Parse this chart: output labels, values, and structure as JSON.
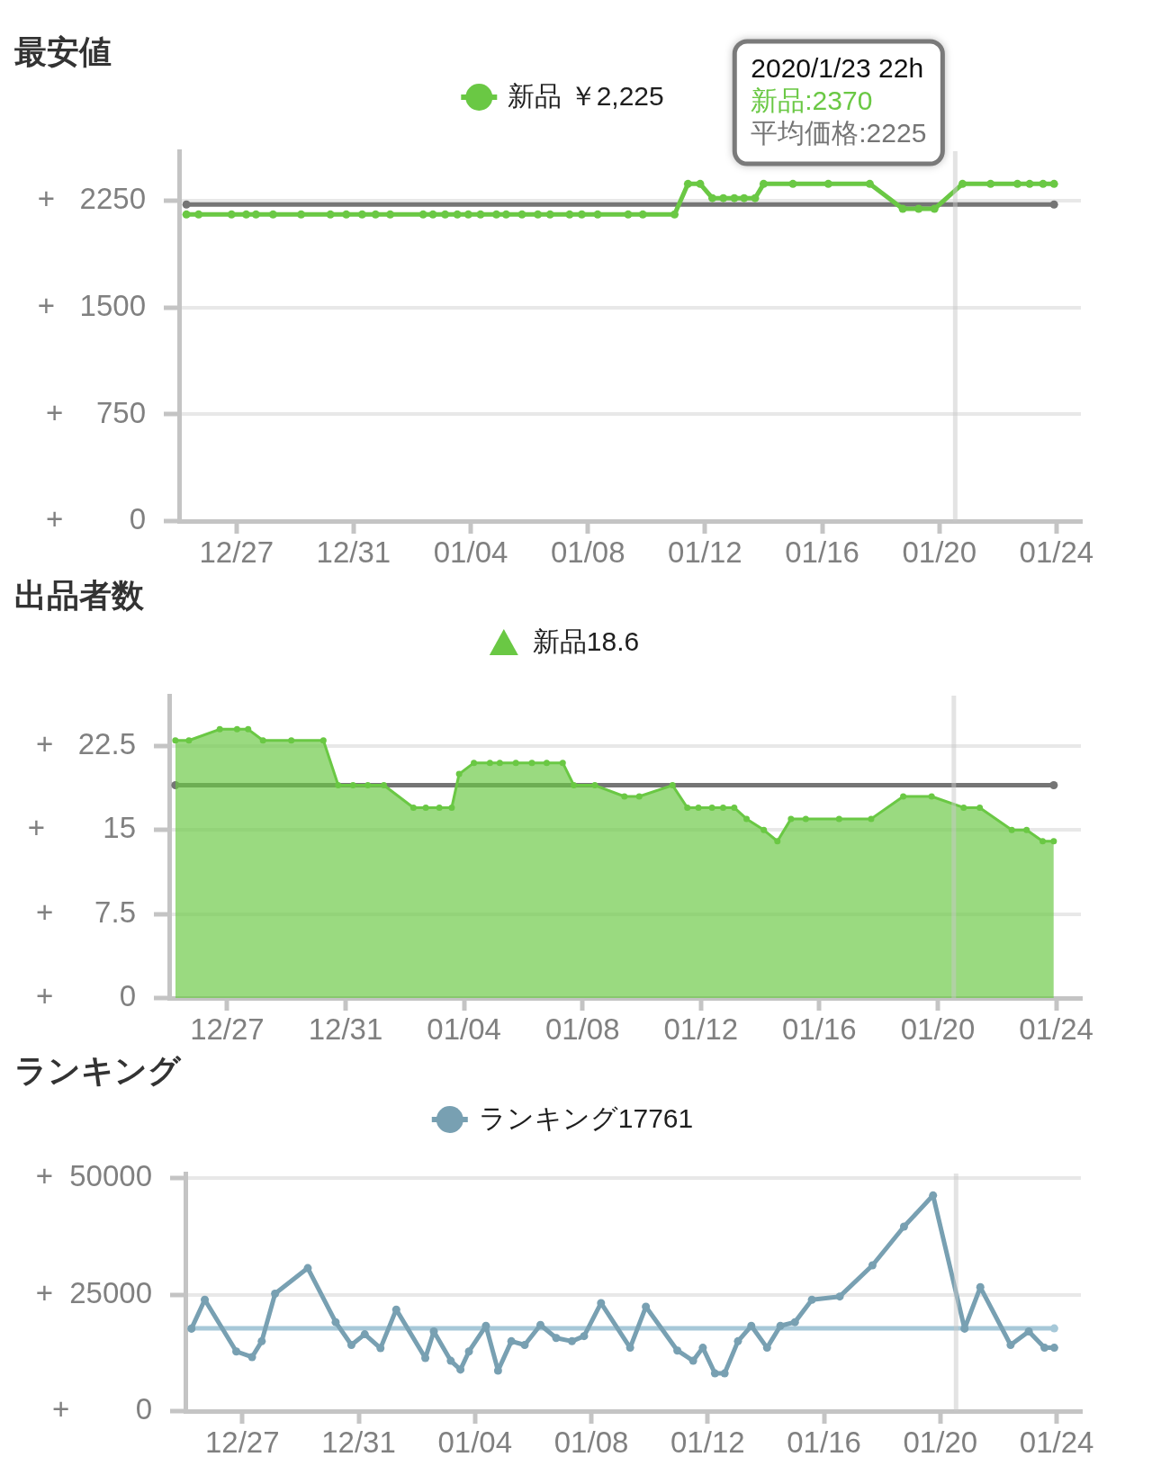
{
  "chart_data": [
    {
      "type": "line",
      "title": "最安値",
      "x": [
        "2019-12-25T07:00",
        "2019-12-25T17:00",
        "2019-12-26T20:00",
        "2019-12-27T08:00",
        "2019-12-27T16:00",
        "2019-12-28T06:00",
        "2019-12-29T05:00",
        "2019-12-30T05:00",
        "2019-12-30T18:00",
        "2019-12-31T07:00",
        "2019-12-31T18:00",
        "2020-01-01T06:00",
        "2020-01-02T09:00",
        "2020-01-02T17:00",
        "2020-01-03T03:00",
        "2020-01-03T13:00",
        "2020-01-03T22:00",
        "2020-01-04T08:00",
        "2020-01-04T21:00",
        "2020-01-05T05:00",
        "2020-01-05T18:00",
        "2020-01-06T07:00",
        "2020-01-06T17:00",
        "2020-01-07T09:00",
        "2020-01-07T19:00",
        "2020-01-08T08:00",
        "2020-01-09T09:00",
        "2020-01-09T21:00",
        "2020-01-10T23:00",
        "2020-01-11T10:00",
        "2020-01-11T20:00",
        "2020-01-12T06:00",
        "2020-01-12T15:00",
        "2020-01-13T00:00",
        "2020-01-13T08:00",
        "2020-01-13T17:00",
        "2020-01-14T00:00",
        "2020-01-15T00:00",
        "2020-01-16T05:00",
        "2020-01-17T15:00",
        "2020-01-18T18:00",
        "2020-01-19T07:00",
        "2020-01-19T20:00",
        "2020-01-20T19:00",
        "2020-01-21T18:00",
        "2020-01-22T16:00",
        "2020-01-23T02:00",
        "2020-01-23T13:00",
        "2020-01-23T22:00"
      ],
      "series": [
        {
          "name": "新品 ￥2,225",
          "color": "#6ac844",
          "values": [
            2155,
            2155,
            2155,
            2155,
            2155,
            2155,
            2155,
            2155,
            2155,
            2155,
            2155,
            2155,
            2155,
            2155,
            2155,
            2155,
            2155,
            2155,
            2155,
            2155,
            2155,
            2155,
            2155,
            2155,
            2155,
            2155,
            2155,
            2155,
            2155,
            2370,
            2370,
            2270,
            2270,
            2270,
            2270,
            2270,
            2370,
            2370,
            2370,
            2370,
            2195,
            2195,
            2195,
            2370,
            2370,
            2370,
            2370,
            2370,
            2370
          ]
        },
        {
          "type": "line",
          "color": "#757575",
          "x": [
            "2019-12-25T07:00",
            "2020-01-23T22:00"
          ],
          "values": [
            2225,
            2225
          ]
        }
      ],
      "xlim": [
        "2019-12-25T01:00",
        "2020-01-24T20:00"
      ],
      "xticks": [
        {
          "value": "2019-12-27",
          "label": "12/27"
        },
        {
          "value": "2019-12-31",
          "label": "12/31"
        },
        {
          "value": "2020-01-04",
          "label": "01/04"
        },
        {
          "value": "2020-01-08",
          "label": "01/08"
        },
        {
          "value": "2020-01-12",
          "label": "01/12"
        },
        {
          "value": "2020-01-16",
          "label": "01/16"
        },
        {
          "value": "2020-01-20",
          "label": "01/20"
        },
        {
          "value": "2020-01-24",
          "label": "01/24"
        }
      ],
      "ylim": [
        0,
        2600
      ],
      "yticks": [
        {
          "value": 0,
          "label": "+        0"
        },
        {
          "value": 750,
          "label": "+    750"
        },
        {
          "value": 1500,
          "label": "+   1500"
        },
        {
          "value": 2250,
          "label": "+   2250"
        }
      ],
      "grid": "y",
      "legend": "top",
      "marker": "circle",
      "ref_lines": [
        {
          "axis": "x",
          "value": "2020-01-20T13:00",
          "color": "#c8c8c8"
        }
      ],
      "annotations": [
        "2020/1/23 22h",
        "新品:2370",
        "平均価格:2225"
      ]
    },
    {
      "type": "area",
      "title": "出品者数",
      "x": [
        "2019-12-25T06:00",
        "2019-12-25T17:00",
        "2019-12-26T18:00",
        "2019-12-27T08:00",
        "2019-12-27T17:00",
        "2019-12-28T05:00",
        "2019-12-29T04:00",
        "2019-12-30T06:00",
        "2019-12-30T18:00",
        "2019-12-31T06:00",
        "2019-12-31T18:00",
        "2020-01-01T07:00",
        "2020-01-02T07:00",
        "2020-01-02T17:00",
        "2020-01-03T04:00",
        "2020-01-03T14:00",
        "2020-01-03T20:00",
        "2020-01-04T08:00",
        "2020-01-04T21:00",
        "2020-01-05T05:00",
        "2020-01-05T18:00",
        "2020-01-06T07:00",
        "2020-01-06T19:00",
        "2020-01-07T08:00",
        "2020-01-07T17:00",
        "2020-01-08T10:00",
        "2020-01-09T10:00",
        "2020-01-09T22:00",
        "2020-01-11T01:00",
        "2020-01-11T13:00",
        "2020-01-11T22:00",
        "2020-01-12T09:00",
        "2020-01-12T18:00",
        "2020-01-13T03:00",
        "2020-01-13T13:00",
        "2020-01-14T03:00",
        "2020-01-14T14:00",
        "2020-01-15T01:00",
        "2020-01-15T13:00",
        "2020-01-16T16:00",
        "2020-01-17T18:00",
        "2020-01-18T20:00",
        "2020-01-19T19:00",
        "2020-01-20T21:00",
        "2020-01-21T10:00",
        "2020-01-22T12:00",
        "2020-01-23T00:00",
        "2020-01-23T13:00",
        "2020-01-23T22:00"
      ],
      "series": [
        {
          "name": "新品18.6",
          "color": "#6ac844",
          "values": [
            23,
            23,
            24,
            24,
            24,
            23,
            23,
            23,
            19,
            19,
            19,
            19,
            17,
            17,
            17,
            17,
            20,
            21,
            21,
            21,
            21,
            21,
            21,
            21,
            19,
            19,
            18,
            18,
            19,
            17,
            17,
            17,
            17,
            17,
            16,
            15,
            14,
            16,
            16,
            16,
            16,
            18,
            18,
            17,
            17,
            15,
            15,
            14,
            14
          ]
        },
        {
          "type": "line",
          "color": "#757575",
          "x": [
            "2019-12-25T06:00",
            "2020-01-23T22:00"
          ],
          "values": [
            19,
            19
          ]
        }
      ],
      "xlim": [
        "2019-12-25T01:00",
        "2020-01-24T20:00"
      ],
      "xticks": [
        {
          "value": "2019-12-27",
          "label": "12/27"
        },
        {
          "value": "2019-12-31",
          "label": "12/31"
        },
        {
          "value": "2020-01-04",
          "label": "01/04"
        },
        {
          "value": "2020-01-08",
          "label": "01/08"
        },
        {
          "value": "2020-01-12",
          "label": "01/12"
        },
        {
          "value": "2020-01-16",
          "label": "01/16"
        },
        {
          "value": "2020-01-20",
          "label": "01/20"
        },
        {
          "value": "2020-01-24",
          "label": "01/24"
        }
      ],
      "ylim": [
        0,
        27
      ],
      "yticks": [
        {
          "value": 0,
          "label": "+        0"
        },
        {
          "value": 7.5,
          "label": "+     7.5"
        },
        {
          "value": 15,
          "label": "+       15"
        },
        {
          "value": 22.5,
          "label": "+   22.5"
        }
      ],
      "grid": "y",
      "legend": "top",
      "marker": "circle",
      "ref_lines": [
        {
          "axis": "x",
          "value": "2020-01-20T13:00",
          "color": "#c8c8c8"
        }
      ]
    },
    {
      "type": "line",
      "title": "ランキング",
      "x": [
        "2019-12-25T06:00",
        "2019-12-25T17:00",
        "2019-12-26T19:00",
        "2019-12-27T08:00",
        "2019-12-27T16:00",
        "2019-12-28T03:00",
        "2019-12-29T06:00",
        "2019-12-30T05:00",
        "2019-12-30T18:00",
        "2019-12-31T05:00",
        "2019-12-31T18:00",
        "2020-01-01T07:00",
        "2020-01-02T07:00",
        "2020-01-02T14:00",
        "2020-01-03T04:00",
        "2020-01-03T12:00",
        "2020-01-03T19:00",
        "2020-01-04T09:00",
        "2020-01-04T19:00",
        "2020-01-05T06:00",
        "2020-01-05T17:00",
        "2020-01-06T06:00",
        "2020-01-06T19:00",
        "2020-01-07T08:00",
        "2020-01-07T18:00",
        "2020-01-08T08:00",
        "2020-01-09T08:00",
        "2020-01-09T21:00",
        "2020-01-10T23:00",
        "2020-01-11T12:00",
        "2020-01-11T20:00",
        "2020-01-12T06:00",
        "2020-01-12T14:00",
        "2020-01-13T01:00",
        "2020-01-13T12:00",
        "2020-01-14T01:00",
        "2020-01-14T12:00",
        "2020-01-15T00:00",
        "2020-01-15T14:00",
        "2020-01-16T13:00",
        "2020-01-17T16:00",
        "2020-01-18T18:00",
        "2020-01-19T18:00",
        "2020-01-20T20:00",
        "2020-01-21T09:00",
        "2020-01-22T10:00",
        "2020-01-23T01:00",
        "2020-01-23T14:00",
        "2020-01-23T22:00"
      ],
      "series": [
        {
          "name": "ランキング17761",
          "color": "#78a0b2",
          "values": [
            17700,
            23900,
            12800,
            11600,
            15000,
            25200,
            30700,
            19100,
            14200,
            16500,
            13500,
            21800,
            11400,
            17100,
            10800,
            8900,
            12800,
            18300,
            8700,
            15000,
            14200,
            18500,
            15700,
            15000,
            16100,
            23200,
            13600,
            22400,
            13000,
            10800,
            13600,
            8100,
            8100,
            15000,
            18300,
            13600,
            18300,
            19100,
            23900,
            24600,
            31300,
            39600,
            46300,
            17700,
            26600,
            14200,
            17100,
            13600,
            13600
          ]
        },
        {
          "type": "line",
          "color": "#a6c8d8",
          "x": [
            "2019-12-25T06:00",
            "2020-01-23T22:00"
          ],
          "values": [
            17761,
            17761
          ]
        }
      ],
      "xlim": [
        "2019-12-25T01:00",
        "2020-01-24T20:00"
      ],
      "xticks": [
        {
          "value": "2019-12-27",
          "label": "12/27"
        },
        {
          "value": "2019-12-31",
          "label": "12/31"
        },
        {
          "value": "2020-01-04",
          "label": "01/04"
        },
        {
          "value": "2020-01-08",
          "label": "01/08"
        },
        {
          "value": "2020-01-12",
          "label": "01/12"
        },
        {
          "value": "2020-01-16",
          "label": "01/16"
        },
        {
          "value": "2020-01-20",
          "label": "01/20"
        },
        {
          "value": "2020-01-24",
          "label": "01/24"
        }
      ],
      "ylim": [
        0,
        51000
      ],
      "yticks": [
        {
          "value": 0,
          "label": "+        0"
        },
        {
          "value": 25000,
          "label": "+  25000"
        },
        {
          "value": 50000,
          "label": "+  50000"
        }
      ],
      "grid": "y",
      "legend": "top",
      "marker": "circle",
      "ref_lines": [
        {
          "axis": "x",
          "value": "2020-01-20T13:00",
          "color": "#c8c8c8"
        }
      ]
    }
  ]
}
